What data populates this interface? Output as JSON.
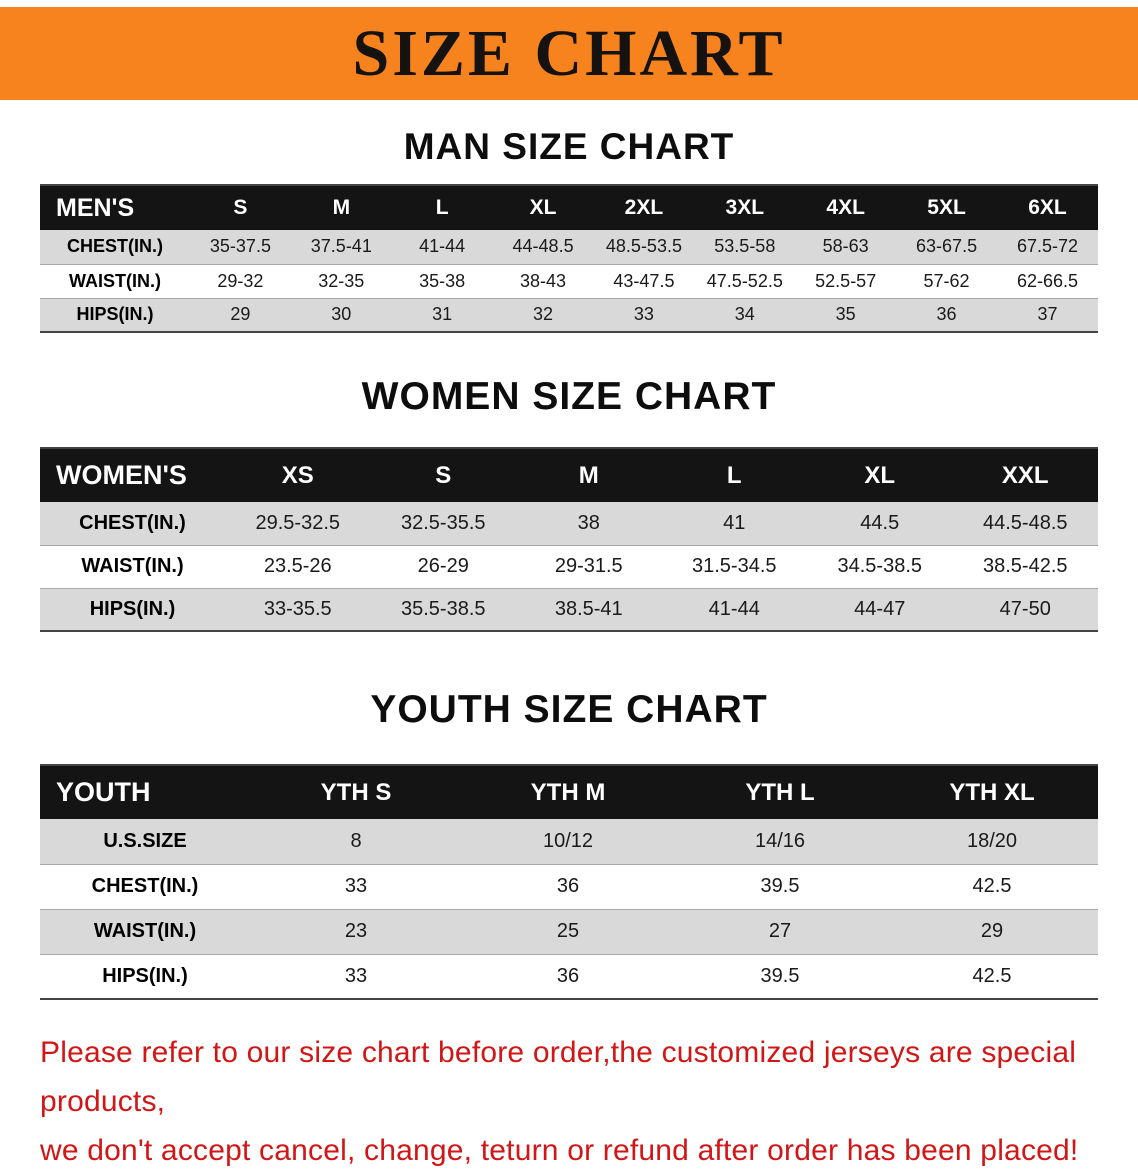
{
  "banner": {
    "title": "SIZE CHART",
    "bg_color": "#F6831E"
  },
  "sections": [
    {
      "heading": "MAN SIZE CHART",
      "table": {
        "header": [
          "MEN'S",
          "S",
          "M",
          "L",
          "XL",
          "2XL",
          "3XL",
          "4XL",
          "5XL",
          "6XL"
        ],
        "rows": [
          [
            "CHEST(IN.)",
            "35-37.5",
            "37.5-41",
            "41-44",
            "44-48.5",
            "48.5-53.5",
            "53.5-58",
            "58-63",
            "63-67.5",
            "67.5-72"
          ],
          [
            "WAIST(IN.)",
            "29-32",
            "32-35",
            "35-38",
            "38-43",
            "43-47.5",
            "47.5-52.5",
            "52.5-57",
            "57-62",
            "62-66.5"
          ],
          [
            "HIPS(IN.)",
            "29",
            "30",
            "31",
            "32",
            "33",
            "34",
            "35",
            "36",
            "37"
          ]
        ]
      }
    },
    {
      "heading": "WOMEN SIZE CHART",
      "table": {
        "header": [
          "WOMEN'S",
          "XS",
          "S",
          "M",
          "L",
          "XL",
          "XXL"
        ],
        "rows": [
          [
            "CHEST(IN.)",
            "29.5-32.5",
            "32.5-35.5",
            "38",
            "41",
            "44.5",
            "44.5-48.5"
          ],
          [
            "WAIST(IN.)",
            "23.5-26",
            "26-29",
            "29-31.5",
            "31.5-34.5",
            "34.5-38.5",
            "38.5-42.5"
          ],
          [
            "HIPS(IN.)",
            "33-35.5",
            "35.5-38.5",
            "38.5-41",
            "41-44",
            "44-47",
            "47-50"
          ]
        ]
      }
    },
    {
      "heading": "YOUTH SIZE CHART",
      "table": {
        "header": [
          "YOUTH",
          "YTH S",
          "YTH M",
          "YTH L",
          "YTH XL"
        ],
        "rows": [
          [
            "U.S.SIZE",
            "8",
            "10/12",
            "14/16",
            "18/20"
          ],
          [
            "CHEST(IN.)",
            "33",
            "36",
            "39.5",
            "42.5"
          ],
          [
            "WAIST(IN.)",
            "23",
            "25",
            "27",
            "29"
          ],
          [
            "HIPS(IN.)",
            "33",
            "36",
            "39.5",
            "42.5"
          ]
        ]
      }
    }
  ],
  "footer": {
    "line1": "Please refer to our size chart before order,the customized jerseys are special products,",
    "line2": "we don't accept cancel, change, teturn or refund after order has been placed!",
    "text_color": "#d21616"
  }
}
